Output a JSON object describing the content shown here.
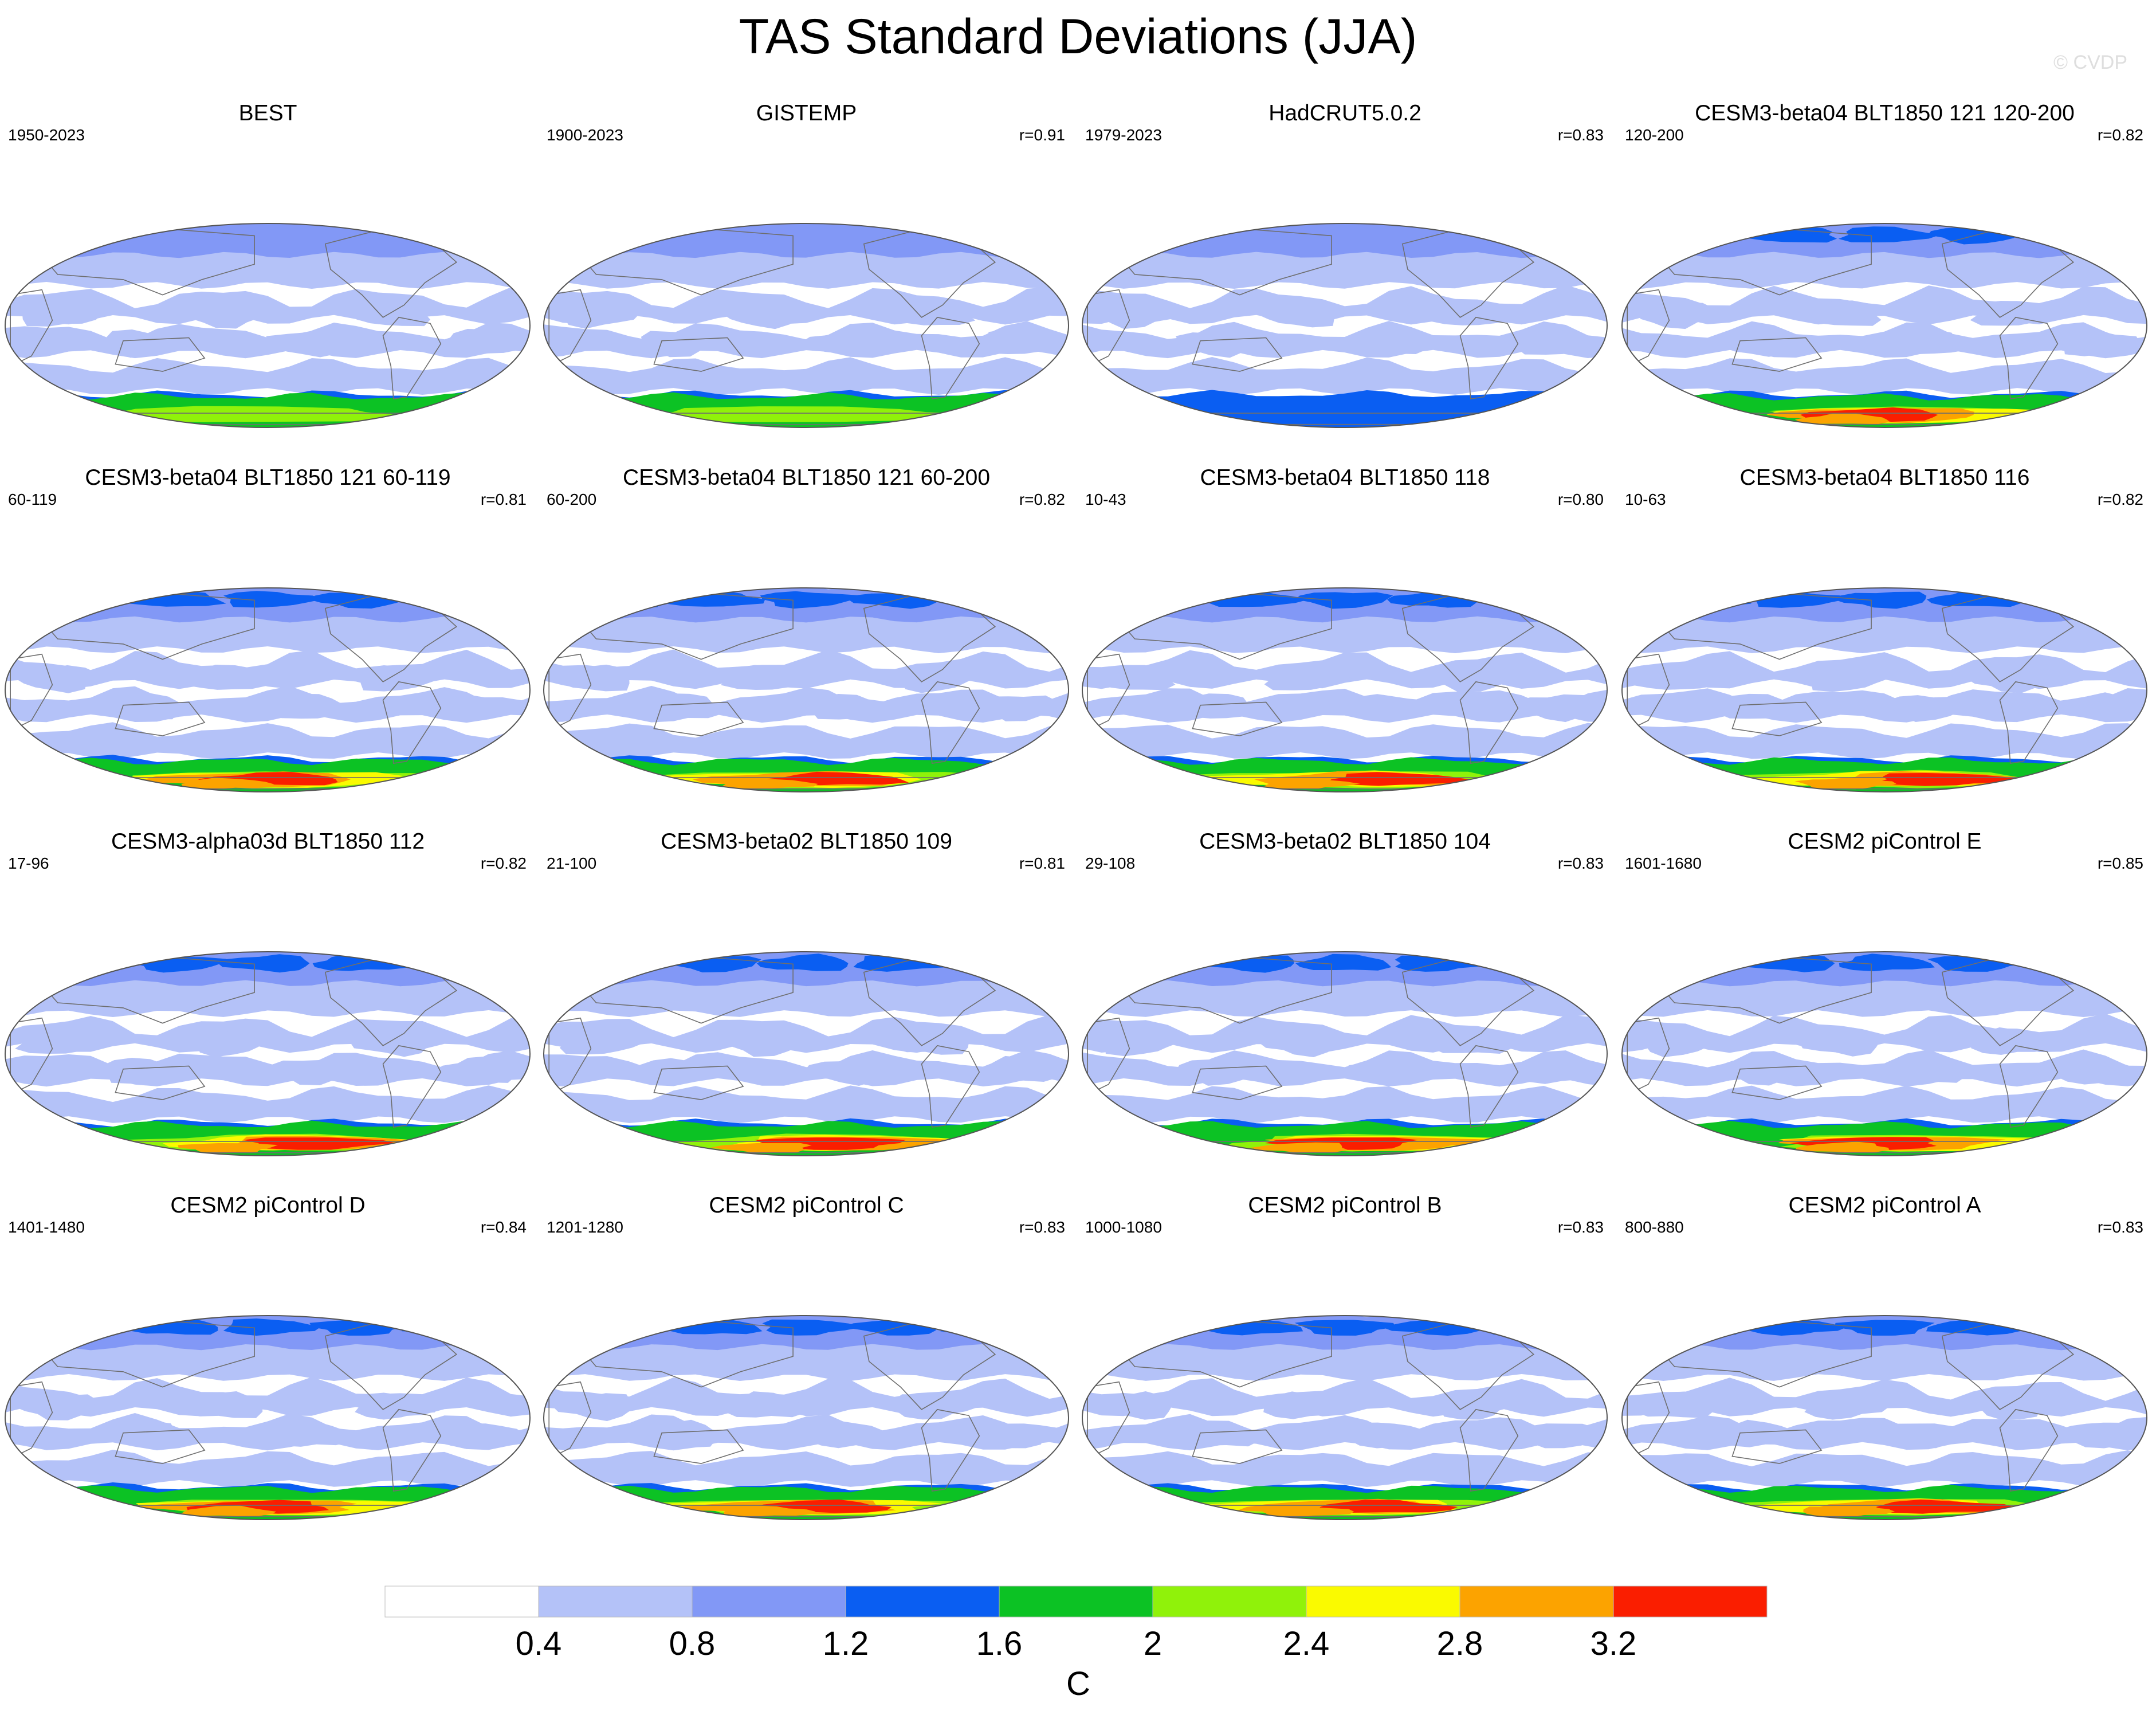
{
  "title": "TAS Standard Deviations (JJA)",
  "watermark": "© CVDP",
  "colors": {
    "levels": [
      "#ffffff",
      "#b4c2f8",
      "#8298f6",
      "#0a5ef2",
      "#0cc224",
      "#90f20a",
      "#fafa00",
      "#fca300",
      "#fa1e00"
    ],
    "coastline": "#6e6e6e",
    "map_border": "#555555"
  },
  "chart_data": {
    "type": "map-panel-grid",
    "variable": "TAS",
    "statistic": "Standard Deviations",
    "season": "JJA",
    "units": "C",
    "colorbar": {
      "levels": [
        0.4,
        0.8,
        1.2,
        1.6,
        2,
        2.4,
        2.8,
        3.2
      ],
      "labels": [
        "0.4",
        "0.8",
        "1.2",
        "1.6",
        "2",
        "2.4",
        "2.8",
        "3.2"
      ],
      "units_label": "C"
    },
    "panels": [
      {
        "title": "BEST",
        "period": "1950-2023",
        "r": "",
        "type": "obs",
        "south_level": 5,
        "north_level": 2
      },
      {
        "title": "GISTEMP",
        "period": "1900-2023",
        "r": "r=0.91",
        "type": "obs",
        "south_level": 5,
        "north_level": 2
      },
      {
        "title": "HadCRUT5.0.2",
        "period": "1979-2023",
        "r": "r=0.83",
        "type": "obs",
        "south_level": 3,
        "north_level": 2
      },
      {
        "title": "CESM3-beta04 BLT1850 121 120-200",
        "period": "120-200",
        "r": "r=0.82",
        "type": "model",
        "south_level": 8,
        "north_level": 3
      },
      {
        "title": "CESM3-beta04 BLT1850 121 60-119",
        "period": "60-119",
        "r": "r=0.81",
        "type": "model",
        "south_level": 8,
        "north_level": 3
      },
      {
        "title": "CESM3-beta04 BLT1850 121 60-200",
        "period": "60-200",
        "r": "r=0.82",
        "type": "model",
        "south_level": 8,
        "north_level": 3
      },
      {
        "title": "CESM3-beta04 BLT1850 118",
        "period": "10-43",
        "r": "r=0.80",
        "type": "model",
        "south_level": 8,
        "north_level": 3
      },
      {
        "title": "CESM3-beta04 BLT1850 116",
        "period": "10-63",
        "r": "r=0.82",
        "type": "model",
        "south_level": 8,
        "north_level": 3
      },
      {
        "title": "CESM3-alpha03d BLT1850 112",
        "period": "17-96",
        "r": "r=0.82",
        "type": "model",
        "south_level": 8,
        "north_level": 3
      },
      {
        "title": "CESM3-beta02 BLT1850 109",
        "period": "21-100",
        "r": "r=0.81",
        "type": "model",
        "south_level": 8,
        "north_level": 3
      },
      {
        "title": "CESM3-beta02 BLT1850 104",
        "period": "29-108",
        "r": "r=0.83",
        "type": "model",
        "south_level": 8,
        "north_level": 3
      },
      {
        "title": "CESM2 piControl E",
        "period": "1601-1680",
        "r": "r=0.85",
        "type": "model",
        "south_level": 8,
        "north_level": 3
      },
      {
        "title": "CESM2 piControl D",
        "period": "1401-1480",
        "r": "r=0.84",
        "type": "model",
        "south_level": 8,
        "north_level": 3
      },
      {
        "title": "CESM2 piControl C",
        "period": "1201-1280",
        "r": "r=0.83",
        "type": "model",
        "south_level": 8,
        "north_level": 3
      },
      {
        "title": "CESM2 piControl B",
        "period": "1000-1080",
        "r": "r=0.83",
        "type": "model",
        "south_level": 8,
        "north_level": 3
      },
      {
        "title": "CESM2 piControl A",
        "period": "800-880",
        "r": "r=0.83",
        "type": "model",
        "south_level": 8,
        "north_level": 3
      }
    ]
  }
}
